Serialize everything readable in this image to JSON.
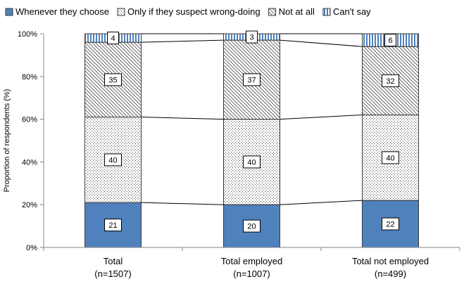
{
  "chart_data": {
    "type": "bar",
    "stacked": true,
    "categories": [
      [
        "Total",
        "(n=1507)"
      ],
      [
        "Total employed",
        "(n=1007)"
      ],
      [
        "Total not employed",
        "(n=499)"
      ]
    ],
    "series": [
      {
        "name": "Whenever they choose",
        "values": [
          21,
          20,
          22
        ],
        "color": "#4f81bd",
        "pattern": "solid"
      },
      {
        "name": "Only if they suspect wrong-doing",
        "values": [
          40,
          40,
          40
        ],
        "color": "#ffffff",
        "pattern": "dots"
      },
      {
        "name": "Not at all",
        "values": [
          35,
          37,
          32
        ],
        "color": "#ffffff",
        "pattern": "diagonal"
      },
      {
        "name": "Can't say",
        "values": [
          4,
          3,
          6
        ],
        "color": "#4f81bd",
        "pattern": "vertical"
      }
    ],
    "ylabel": "Proportion of respondents (%)",
    "ylim": [
      0,
      100
    ],
    "yticks": [
      "0%",
      "20%",
      "40%",
      "60%",
      "80%",
      "100%"
    ],
    "series_lines": true,
    "legend": "top",
    "grid": false
  }
}
